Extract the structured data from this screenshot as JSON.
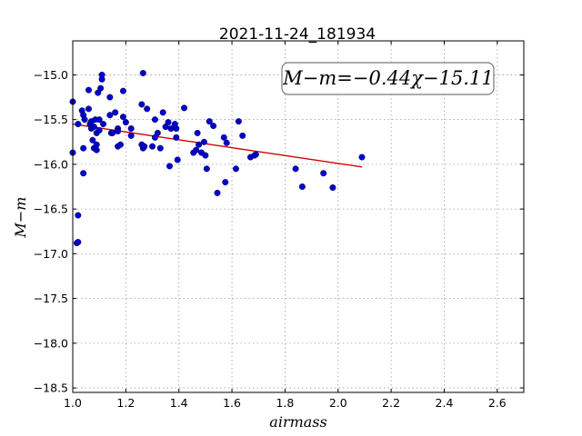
{
  "chart_data": {
    "type": "scatter",
    "title": "2021-11-24_181934",
    "xlabel": "airmass",
    "ylabel": "M−m",
    "xlim": [
      1.0,
      2.7
    ],
    "ylim": [
      -18.55,
      -14.62
    ],
    "xticks": [
      1.0,
      1.2,
      1.4,
      1.6,
      1.8,
      2.0,
      2.2,
      2.4,
      2.6
    ],
    "xtick_labels": [
      "1.0",
      "1.2",
      "1.4",
      "1.6",
      "1.8",
      "2.0",
      "2.2",
      "2.4",
      "2.6"
    ],
    "yticks": [
      -15.0,
      -15.5,
      -16.0,
      -16.5,
      -17.0,
      -17.5,
      -18.0,
      -18.5
    ],
    "ytick_labels": [
      "−15.0",
      "−15.5",
      "−16.0",
      "−16.5",
      "−17.0",
      "−17.5",
      "−18.0",
      "−18.5"
    ],
    "grid": true,
    "annotation": {
      "text": "M−m=−0.44χ−15.11",
      "placement": "top-right"
    },
    "fit": {
      "slope": -0.44,
      "intercept": -15.11,
      "x_range": [
        1.0,
        2.09
      ]
    },
    "colors": {
      "points": "#0000cc",
      "fit_line": "#cc0000"
    },
    "series": [
      {
        "x": [
          1.0,
          1.0,
          1.02,
          1.015,
          1.02,
          1.02,
          1.035,
          1.04,
          1.04,
          1.04,
          1.045,
          1.06,
          1.06,
          1.065,
          1.07,
          1.07,
          1.075,
          1.08,
          1.08,
          1.085,
          1.09,
          1.09,
          1.09,
          1.095,
          1.1,
          1.1,
          1.105,
          1.11,
          1.11,
          1.115,
          1.14,
          1.14,
          1.145,
          1.15,
          1.16,
          1.17,
          1.17,
          1.17,
          1.18,
          1.19,
          1.19,
          1.2,
          1.22,
          1.22,
          1.26,
          1.26,
          1.265,
          1.265,
          1.27,
          1.28,
          1.3,
          1.31,
          1.31,
          1.32,
          1.33,
          1.34,
          1.35,
          1.36,
          1.365,
          1.37,
          1.385,
          1.39,
          1.39,
          1.395,
          1.42,
          1.455,
          1.465,
          1.47,
          1.475,
          1.485,
          1.495,
          1.5,
          1.505,
          1.515,
          1.53,
          1.545,
          1.57,
          1.575,
          1.58,
          1.615,
          1.625,
          1.64,
          1.67,
          1.685,
          1.69,
          1.84,
          1.865,
          1.945,
          1.98,
          2.09
        ],
        "y": [
          -15.3,
          -15.87,
          -16.57,
          -16.88,
          -16.87,
          -15.55,
          -15.4,
          -15.45,
          -15.82,
          -16.1,
          -15.5,
          -15.17,
          -15.38,
          -15.55,
          -15.52,
          -15.6,
          -15.73,
          -15.58,
          -15.82,
          -15.5,
          -15.84,
          -15.65,
          -15.78,
          -15.2,
          -15.5,
          -15.62,
          -15.15,
          -15.05,
          -15.0,
          -15.55,
          -15.25,
          -15.45,
          -15.65,
          -15.65,
          -15.42,
          -15.6,
          -15.63,
          -15.8,
          -15.78,
          -15.47,
          -15.18,
          -15.53,
          -15.6,
          -15.68,
          -15.33,
          -15.78,
          -15.82,
          -14.98,
          -15.8,
          -15.38,
          -15.8,
          -15.5,
          -15.7,
          -15.65,
          -15.82,
          -15.42,
          -15.58,
          -15.53,
          -16.02,
          -15.6,
          -15.55,
          -15.6,
          -15.7,
          -15.95,
          -15.37,
          -15.87,
          -15.84,
          -15.65,
          -15.78,
          -15.87,
          -15.75,
          -15.9,
          -16.05,
          -15.52,
          -15.57,
          -16.32,
          -15.7,
          -16.2,
          -15.76,
          -16.05,
          -15.52,
          -15.68,
          -15.92,
          -15.9,
          -15.89,
          -16.05,
          -16.25,
          -16.1,
          -16.26,
          -15.92
        ]
      }
    ]
  }
}
